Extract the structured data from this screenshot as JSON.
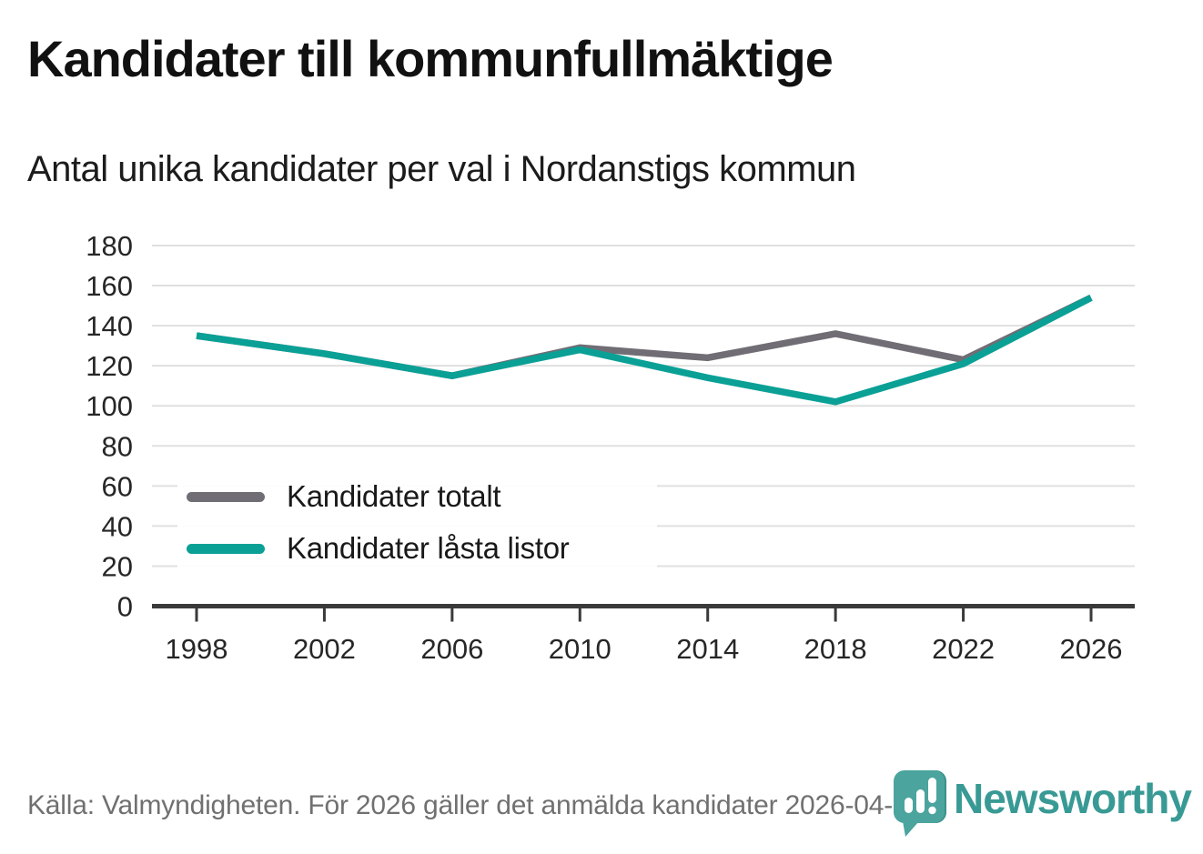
{
  "header": {
    "title": "Kandidater till kommunfullmäktige",
    "subtitle": "Antal unika kandidater per val i Nordanstigs kommun"
  },
  "chart_data": {
    "type": "line",
    "categories": [
      "1998",
      "2002",
      "2006",
      "2010",
      "2014",
      "2018",
      "2022",
      "2026"
    ],
    "series": [
      {
        "name": "Kandidater totalt",
        "color": "#716d75",
        "values": [
          135,
          126,
          115,
          129,
          124,
          136,
          123,
          154
        ]
      },
      {
        "name": "Kandidater låsta listor",
        "color": "#0aa096",
        "values": [
          135,
          126,
          115,
          128,
          114,
          102,
          121,
          154
        ]
      }
    ],
    "title": "Kandidater till kommunfullmäktige",
    "subtitle": "Antal unika kandidater per val i Nordanstigs kommun",
    "xlabel": "",
    "ylabel": "",
    "ylim": [
      0,
      180
    ],
    "ytick_step": 20,
    "yticks": [
      0,
      20,
      40,
      60,
      80,
      100,
      120,
      140,
      160,
      180
    ],
    "grid": "horizontal",
    "legend_position": "inside-left-bottom"
  },
  "footer": {
    "source": "Källa: Valmyndigheten. För 2026 gäller det anmälda kandidater 2026-04-10."
  },
  "brand": {
    "name": "Newsworthy",
    "icon": "speech-bubble-bar-chart-icon",
    "text_color": "#399a95",
    "icon_color": "#4ba49e"
  },
  "colors": {
    "grid": "#e0e0e0",
    "axis": "#3a3a3a",
    "tick_label": "#262626",
    "title": "#111111",
    "footer_text": "#707070"
  }
}
